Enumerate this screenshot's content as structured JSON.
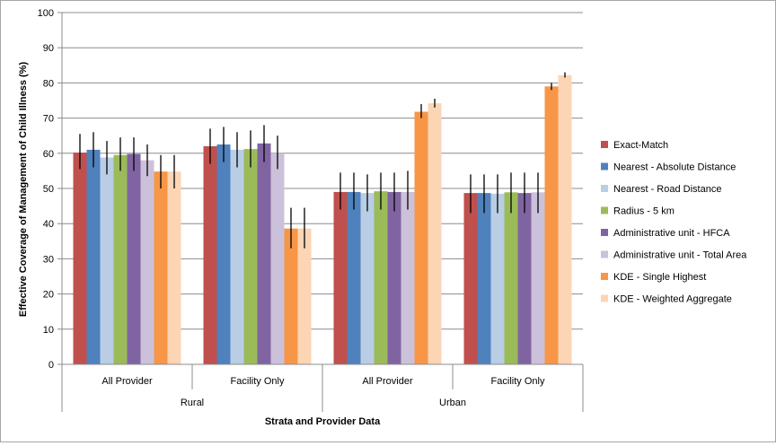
{
  "chart_data": {
    "type": "bar",
    "title": "",
    "xlabel": "Strata and Provider Data",
    "ylabel": "Effective Coverage of Management of Child Illness (%)",
    "ylim": [
      0,
      100
    ],
    "yticks": [
      0,
      10,
      20,
      30,
      40,
      50,
      60,
      70,
      80,
      90,
      100
    ],
    "grid": true,
    "legend_position": "right",
    "categories": [
      "All Provider",
      "Facility Only",
      "All Provider",
      "Facility Only"
    ],
    "groups": [
      {
        "label": "Rural",
        "categories": [
          "All Provider",
          "Facility Only"
        ]
      },
      {
        "label": "Urban",
        "categories": [
          "All Provider",
          "Facility Only"
        ]
      }
    ],
    "series": [
      {
        "name": "Exact-Match",
        "color": "#c0504d",
        "values": [
          60.2,
          62.0,
          49.0,
          48.7
        ],
        "err_low": [
          55.5,
          57.0,
          44.0,
          43.0
        ],
        "err_high": [
          65.5,
          67.0,
          54.5,
          54.0
        ]
      },
      {
        "name": "Nearest - Absolute Distance",
        "color": "#4f81bd",
        "values": [
          61.0,
          62.5,
          49.0,
          48.7
        ],
        "err_low": [
          56.0,
          57.5,
          44.0,
          43.0
        ],
        "err_high": [
          66.0,
          67.5,
          54.5,
          54.0
        ]
      },
      {
        "name": "Nearest - Road Distance",
        "color": "#b9cde5",
        "values": [
          58.8,
          61.0,
          48.7,
          48.5
        ],
        "err_low": [
          54.0,
          56.0,
          43.5,
          43.0
        ],
        "err_high": [
          63.5,
          66.0,
          54.0,
          54.0
        ]
      },
      {
        "name": "Radius - 5 km",
        "color": "#9bbb59",
        "values": [
          59.5,
          61.2,
          49.2,
          48.9
        ],
        "err_low": [
          55.0,
          56.0,
          44.0,
          43.0
        ],
        "err_high": [
          64.5,
          66.5,
          54.5,
          54.5
        ]
      },
      {
        "name": "Administrative unit - HFCA",
        "color": "#8064a2",
        "values": [
          59.8,
          62.8,
          49.0,
          48.7
        ],
        "err_low": [
          55.0,
          57.5,
          43.5,
          43.0
        ],
        "err_high": [
          64.5,
          68.0,
          54.5,
          54.5
        ]
      },
      {
        "name": "Administrative unit - Total Area",
        "color": "#ccc1da",
        "values": [
          58.0,
          60.0,
          49.0,
          48.9
        ],
        "err_low": [
          53.5,
          55.5,
          44.0,
          43.0
        ],
        "err_high": [
          62.5,
          65.0,
          55.0,
          54.5
        ]
      },
      {
        "name": "KDE - Single Highest",
        "color": "#f79646",
        "values": [
          54.8,
          38.6,
          71.8,
          79.0
        ],
        "err_low": [
          50.0,
          33.0,
          70.0,
          78.0
        ],
        "err_high": [
          59.5,
          44.5,
          74.0,
          80.0
        ]
      },
      {
        "name": "KDE - Weighted Aggregate",
        "color": "#fcd5b5",
        "values": [
          54.8,
          38.6,
          74.2,
          82.2
        ],
        "err_low": [
          50.0,
          33.0,
          73.0,
          81.5
        ],
        "err_high": [
          59.5,
          44.5,
          75.5,
          83.0
        ]
      }
    ]
  }
}
